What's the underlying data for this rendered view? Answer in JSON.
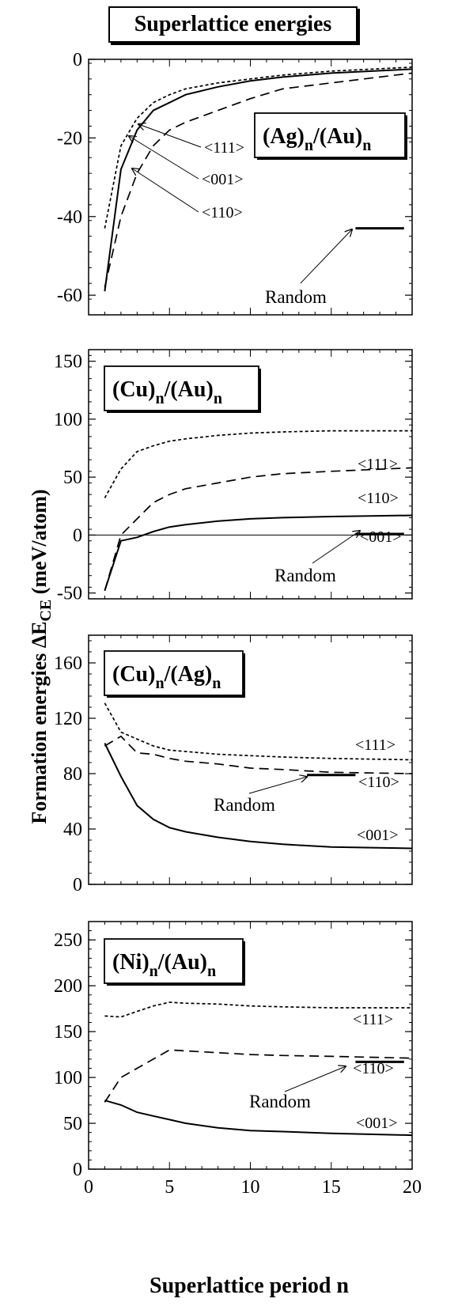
{
  "figure": {
    "title": "Superlattice energies",
    "ylabel_main": "Formation energies ΔE",
    "ylabel_sub": "CE",
    "ylabel_unit": " (meV/atom)",
    "xlabel": "Superlattice period n"
  },
  "chart_data": [
    {
      "type": "line",
      "system": {
        "a": "(Ag)",
        "b": "/(Au)",
        "sub": "n"
      },
      "xlim": [
        0,
        20
      ],
      "ylim": [
        -65,
        0
      ],
      "yticks": [
        -60,
        -40,
        -20,
        0
      ],
      "xticks": [
        0,
        5,
        10,
        15,
        20
      ],
      "show_xtick_labels": false,
      "zero_line": false,
      "series": [
        {
          "name": "<111>",
          "style": "dotted",
          "x": [
            1,
            2,
            3,
            4,
            5,
            6,
            8,
            10,
            12,
            15,
            20
          ],
          "y": [
            -43,
            -22,
            -15,
            -11,
            -9,
            -7.5,
            -6,
            -5,
            -4,
            -3,
            -2
          ]
        },
        {
          "name": "<001>",
          "style": "solid",
          "x": [
            1,
            2,
            3,
            4,
            5,
            6,
            8,
            10,
            12,
            15,
            20
          ],
          "y": [
            -59,
            -28,
            -18,
            -13,
            -11,
            -9,
            -7,
            -5.5,
            -4.5,
            -3.5,
            -2.5
          ]
        },
        {
          "name": "<110>",
          "style": "dashed",
          "x": [
            1,
            2,
            3,
            4,
            5,
            6,
            8,
            10,
            12,
            15,
            20
          ],
          "y": [
            -58,
            -40,
            -29,
            -22,
            -18,
            -16,
            -13,
            -10,
            -7.5,
            -6,
            -3.5
          ]
        }
      ],
      "random": {
        "label": "Random",
        "x": [
          16.5,
          19.5
        ],
        "y": -43
      }
    },
    {
      "type": "line",
      "system": {
        "a": "(Cu)",
        "b": "/(Au)",
        "sub": "n"
      },
      "xlim": [
        0,
        20
      ],
      "ylim": [
        -55,
        160
      ],
      "yticks": [
        -50,
        0,
        50,
        100,
        150
      ],
      "xticks": [
        0,
        5,
        10,
        15,
        20
      ],
      "show_xtick_labels": false,
      "zero_line": true,
      "series": [
        {
          "name": "<111>",
          "style": "dotted",
          "x": [
            1,
            2,
            3,
            4,
            5,
            6,
            8,
            10,
            12,
            15,
            20
          ],
          "y": [
            32,
            57,
            72,
            77,
            81,
            83,
            86,
            88,
            89,
            90,
            90
          ]
        },
        {
          "name": "<110>",
          "style": "dashed",
          "x": [
            1,
            2,
            3,
            4,
            5,
            6,
            8,
            10,
            12,
            15,
            20
          ],
          "y": [
            -48,
            0,
            14,
            28,
            35,
            40,
            45,
            50,
            53,
            55,
            58
          ]
        },
        {
          "name": "<001>",
          "style": "solid",
          "x": [
            1,
            2,
            3,
            4,
            5,
            6,
            8,
            10,
            12,
            15,
            20
          ],
          "y": [
            -48,
            -5,
            -2,
            3,
            7,
            9,
            12,
            14,
            15,
            16,
            17
          ]
        }
      ],
      "random": {
        "label": "Random",
        "x": [
          16.5,
          19.5
        ],
        "y": 1
      }
    },
    {
      "type": "line",
      "system": {
        "a": "(Cu)",
        "b": "/(Ag)",
        "sub": "n"
      },
      "xlim": [
        0,
        20
      ],
      "ylim": [
        0,
        180
      ],
      "yticks": [
        0,
        40,
        80,
        120,
        160
      ],
      "xticks": [
        0,
        5,
        10,
        15,
        20
      ],
      "show_xtick_labels": false,
      "zero_line": false,
      "series": [
        {
          "name": "<111>",
          "style": "dotted",
          "x": [
            1,
            2,
            3,
            4,
            5,
            6,
            8,
            10,
            12,
            15,
            20
          ],
          "y": [
            131,
            110,
            105,
            100,
            97,
            96,
            94,
            93,
            92,
            91,
            90
          ]
        },
        {
          "name": "<110>",
          "style": "dashed",
          "x": [
            1,
            2,
            3,
            4,
            5,
            6,
            8,
            10,
            12,
            15,
            20
          ],
          "y": [
            100,
            107,
            95,
            94,
            91,
            89,
            87,
            84,
            83,
            81,
            80
          ]
        },
        {
          "name": "<001>",
          "style": "solid",
          "x": [
            1,
            2,
            3,
            4,
            5,
            6,
            8,
            10,
            12,
            15,
            20
          ],
          "y": [
            102,
            78,
            57,
            47,
            41,
            38,
            34,
            31,
            29,
            27,
            26
          ]
        }
      ],
      "random": {
        "label": "Random",
        "x": [
          13.5,
          16.5
        ],
        "y": 79
      }
    },
    {
      "type": "line",
      "system": {
        "a": "(Ni)",
        "b": "/(Au)",
        "sub": "n"
      },
      "xlim": [
        0,
        20
      ],
      "ylim": [
        0,
        270
      ],
      "yticks": [
        0,
        50,
        100,
        150,
        200,
        250
      ],
      "xticks": [
        0,
        5,
        10,
        15,
        20
      ],
      "show_xtick_labels": true,
      "zero_line": false,
      "series": [
        {
          "name": "<111>",
          "style": "dotted",
          "x": [
            1,
            2,
            3,
            4,
            5,
            6,
            8,
            10,
            12,
            15,
            20
          ],
          "y": [
            167,
            166,
            172,
            178,
            182,
            181,
            180,
            178,
            177,
            176,
            176
          ]
        },
        {
          "name": "<110>",
          "style": "dashed",
          "x": [
            1,
            2,
            3,
            4,
            5,
            6,
            8,
            10,
            12,
            15,
            20
          ],
          "y": [
            73,
            100,
            110,
            120,
            130,
            129,
            127,
            125,
            124,
            123,
            121
          ]
        },
        {
          "name": "<001>",
          "style": "solid",
          "x": [
            1,
            2,
            3,
            4,
            5,
            6,
            8,
            10,
            12,
            15,
            20
          ],
          "y": [
            75,
            70,
            62,
            58,
            54,
            50,
            45,
            42,
            41,
            39,
            37
          ]
        }
      ],
      "random": {
        "label": "Random",
        "x": [
          16.5,
          19.5
        ],
        "y": 117
      }
    }
  ]
}
